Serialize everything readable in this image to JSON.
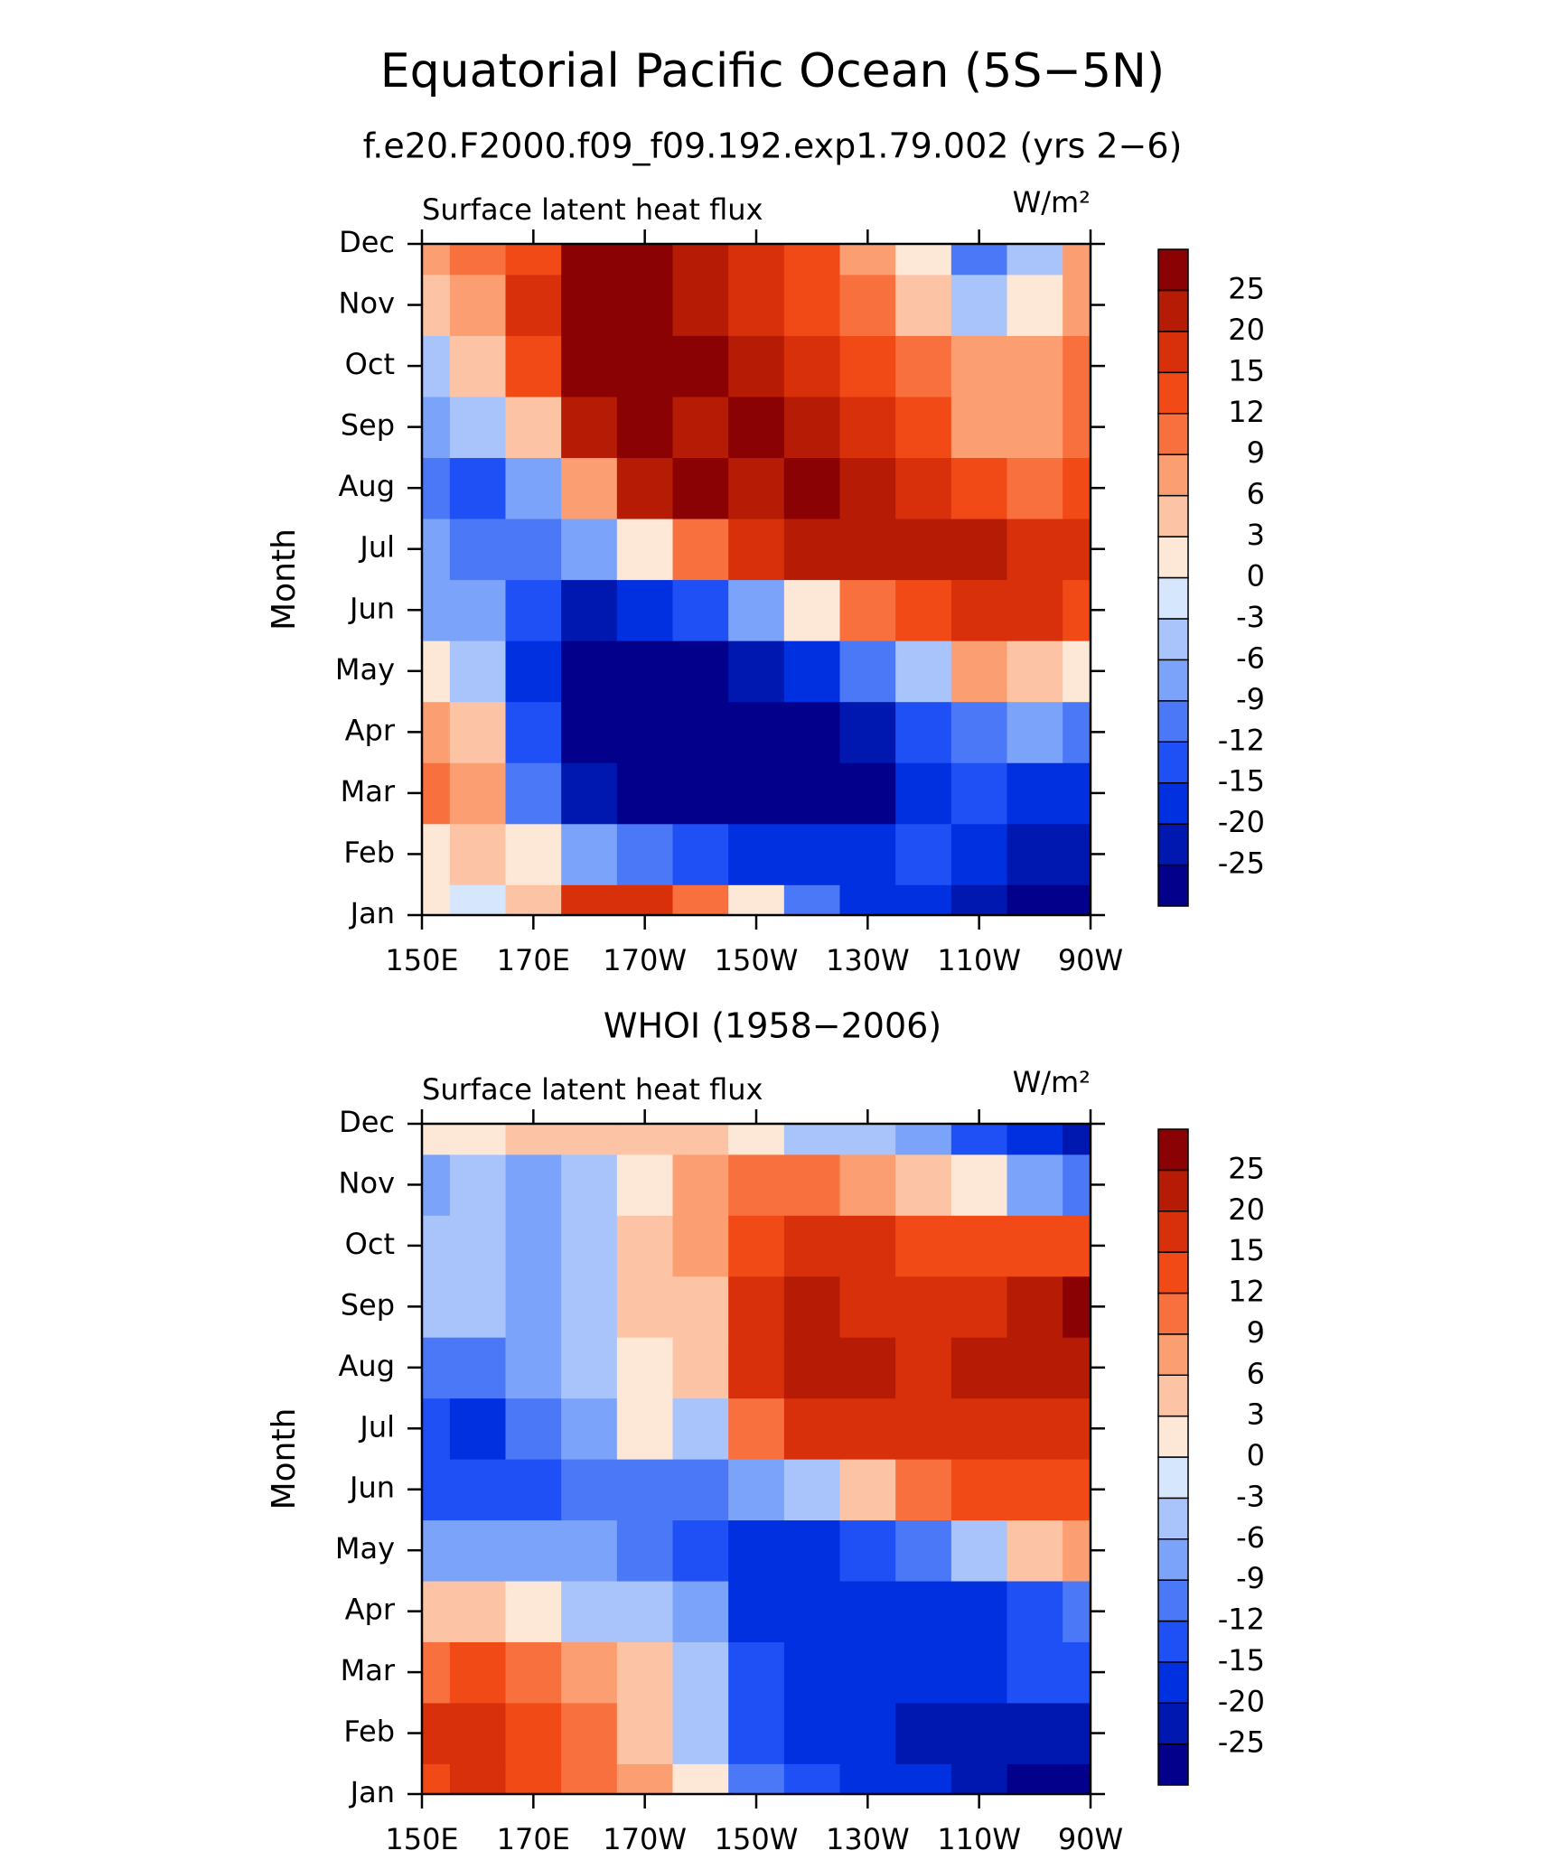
{
  "chart_data": [
    {
      "type": "contour",
      "title": "Equatorial Pacific Ocean (5S−5N)",
      "subtitle": "f.e20.F2000.f09_f09.192.exp1.79.002 (yrs 2−6)",
      "left_label": "Surface latent heat flux",
      "right_label": "W/m²",
      "ylabel": "Month",
      "x": [
        150,
        160,
        170,
        180,
        190,
        200,
        210,
        220,
        230,
        240,
        250,
        260,
        270
      ],
      "y": [
        1,
        2,
        3,
        4,
        5,
        6,
        7,
        8,
        9,
        10,
        11,
        12
      ],
      "xlim": [
        150,
        270
      ],
      "ylim": [
        1,
        12
      ],
      "xticks": [
        {
          "value": 150,
          "label": "150E"
        },
        {
          "value": 170,
          "label": "170E"
        },
        {
          "value": 190,
          "label": "170W"
        },
        {
          "value": 210,
          "label": "150W"
        },
        {
          "value": 230,
          "label": "130W"
        },
        {
          "value": 250,
          "label": "110W"
        },
        {
          "value": 270,
          "label": "90W"
        }
      ],
      "yticks": [
        {
          "value": 1,
          "label": "Jan"
        },
        {
          "value": 2,
          "label": "Feb"
        },
        {
          "value": 3,
          "label": "Mar"
        },
        {
          "value": 4,
          "label": "Apr"
        },
        {
          "value": 5,
          "label": "May"
        },
        {
          "value": 6,
          "label": "Jun"
        },
        {
          "value": 7,
          "label": "Jul"
        },
        {
          "value": 8,
          "label": "Aug"
        },
        {
          "value": 9,
          "label": "Sep"
        },
        {
          "value": 10,
          "label": "Oct"
        },
        {
          "value": 11,
          "label": "Nov"
        },
        {
          "value": 12,
          "label": "Dec"
        }
      ],
      "levels": [
        -25,
        -20,
        -15,
        -12,
        -9,
        -6,
        -3,
        0,
        3,
        6,
        9,
        12,
        15,
        20,
        25
      ],
      "colors": [
        "#03008c",
        "#0018b0",
        "#0030e0",
        "#1f50f5",
        "#4a78f7",
        "#7ca3fa",
        "#a9c4fb",
        "#d6e6fd",
        "#fde8d8",
        "#fcc4a4",
        "#fb9e72",
        "#f9703f",
        "#f24a16",
        "#d8300a",
        "#b51b05",
        "#8a0203"
      ],
      "z": [
        [
          2,
          -2,
          3,
          15,
          18,
          9,
          0,
          -9,
          -15,
          -15,
          -20,
          -25,
          -25
        ],
        [
          1,
          3,
          1,
          -6,
          -9,
          -12,
          -15,
          -15,
          -15,
          -12,
          -15,
          -20,
          -20
        ],
        [
          9,
          6,
          -9,
          -20,
          -25,
          -25,
          -25,
          -25,
          -25,
          -15,
          -12,
          -15,
          -15
        ],
        [
          6,
          3,
          -12,
          -25,
          -25,
          -25,
          -25,
          -25,
          -20,
          -12,
          -9,
          -6,
          -9
        ],
        [
          1,
          -3,
          -15,
          -25,
          -25,
          -25,
          -20,
          -15,
          -9,
          -3,
          6,
          3,
          0
        ],
        [
          -6,
          -6,
          -12,
          -20,
          -15,
          -12,
          -6,
          0,
          9,
          12,
          15,
          15,
          12
        ],
        [
          -6,
          -9,
          -9,
          -6,
          0,
          9,
          15,
          20,
          20,
          20,
          20,
          15,
          15
        ],
        [
          -9,
          -12,
          -6,
          6,
          20,
          25,
          20,
          25,
          20,
          15,
          12,
          9,
          12
        ],
        [
          -6,
          -3,
          3,
          20,
          25,
          20,
          25,
          20,
          15,
          12,
          6,
          6,
          9
        ],
        [
          -3,
          3,
          12,
          25,
          25,
          25,
          20,
          15,
          12,
          9,
          6,
          6,
          9
        ],
        [
          3,
          6,
          15,
          25,
          25,
          20,
          15,
          12,
          9,
          3,
          -3,
          0,
          6
        ],
        [
          6,
          9,
          12,
          25,
          25,
          20,
          15,
          12,
          6,
          0,
          -9,
          -3,
          6
        ]
      ]
    },
    {
      "type": "contour",
      "subtitle": "WHOI (1958−2006)",
      "left_label": "Surface latent heat flux",
      "right_label": "W/m²",
      "ylabel": "Month",
      "x": [
        150,
        160,
        170,
        180,
        190,
        200,
        210,
        220,
        230,
        240,
        250,
        260,
        270
      ],
      "y": [
        1,
        2,
        3,
        4,
        5,
        6,
        7,
        8,
        9,
        10,
        11,
        12
      ],
      "xlim": [
        150,
        270
      ],
      "ylim": [
        1,
        12
      ],
      "xticks": [
        {
          "value": 150,
          "label": "150E"
        },
        {
          "value": 170,
          "label": "170E"
        },
        {
          "value": 190,
          "label": "170W"
        },
        {
          "value": 210,
          "label": "150W"
        },
        {
          "value": 230,
          "label": "130W"
        },
        {
          "value": 250,
          "label": "110W"
        },
        {
          "value": 270,
          "label": "90W"
        }
      ],
      "yticks": [
        {
          "value": 1,
          "label": "Jan"
        },
        {
          "value": 2,
          "label": "Feb"
        },
        {
          "value": 3,
          "label": "Mar"
        },
        {
          "value": 4,
          "label": "Apr"
        },
        {
          "value": 5,
          "label": "May"
        },
        {
          "value": 6,
          "label": "Jun"
        },
        {
          "value": 7,
          "label": "Jul"
        },
        {
          "value": 8,
          "label": "Aug"
        },
        {
          "value": 9,
          "label": "Sep"
        },
        {
          "value": 10,
          "label": "Oct"
        },
        {
          "value": 11,
          "label": "Nov"
        },
        {
          "value": 12,
          "label": "Dec"
        }
      ],
      "levels": [
        -25,
        -20,
        -15,
        -12,
        -9,
        -6,
        -3,
        0,
        3,
        6,
        9,
        12,
        15,
        20,
        25
      ],
      "colors": [
        "#03008c",
        "#0018b0",
        "#0030e0",
        "#1f50f5",
        "#4a78f7",
        "#7ca3fa",
        "#a9c4fb",
        "#d6e6fd",
        "#fde8d8",
        "#fcc4a4",
        "#fb9e72",
        "#f9703f",
        "#f24a16",
        "#d8300a",
        "#b51b05",
        "#8a0203"
      ],
      "z": [
        [
          12,
          15,
          12,
          9,
          6,
          0,
          -9,
          -12,
          -15,
          -15,
          -20,
          -25,
          -25
        ],
        [
          15,
          15,
          12,
          9,
          3,
          -3,
          -12,
          -15,
          -15,
          -20,
          -20,
          -20,
          -20
        ],
        [
          9,
          12,
          9,
          6,
          3,
          -3,
          -12,
          -15,
          -15,
          -15,
          -15,
          -12,
          -12
        ],
        [
          3,
          3,
          0,
          -3,
          -3,
          -6,
          -15,
          -15,
          -15,
          -15,
          -15,
          -12,
          -9
        ],
        [
          -6,
          -6,
          -6,
          -6,
          -9,
          -12,
          -15,
          -15,
          -12,
          -9,
          -3,
          3,
          6
        ],
        [
          -12,
          -12,
          -12,
          -9,
          -9,
          -9,
          -6,
          -3,
          3,
          9,
          12,
          12,
          12
        ],
        [
          -12,
          -15,
          -9,
          -6,
          0,
          -3,
          9,
          15,
          15,
          15,
          15,
          15,
          15
        ],
        [
          -9,
          -9,
          -6,
          -3,
          0,
          3,
          15,
          20,
          20,
          15,
          20,
          20,
          20
        ],
        [
          -3,
          -3,
          -6,
          -3,
          3,
          3,
          15,
          20,
          15,
          15,
          15,
          20,
          25
        ],
        [
          -3,
          -3,
          -6,
          -3,
          3,
          6,
          12,
          15,
          15,
          12,
          12,
          12,
          12
        ],
        [
          -6,
          -3,
          -6,
          -3,
          0,
          6,
          9,
          9,
          6,
          3,
          0,
          -6,
          -9
        ],
        [
          0,
          0,
          3,
          3,
          3,
          3,
          0,
          -3,
          -3,
          -6,
          -12,
          -15,
          -20
        ]
      ]
    }
  ]
}
